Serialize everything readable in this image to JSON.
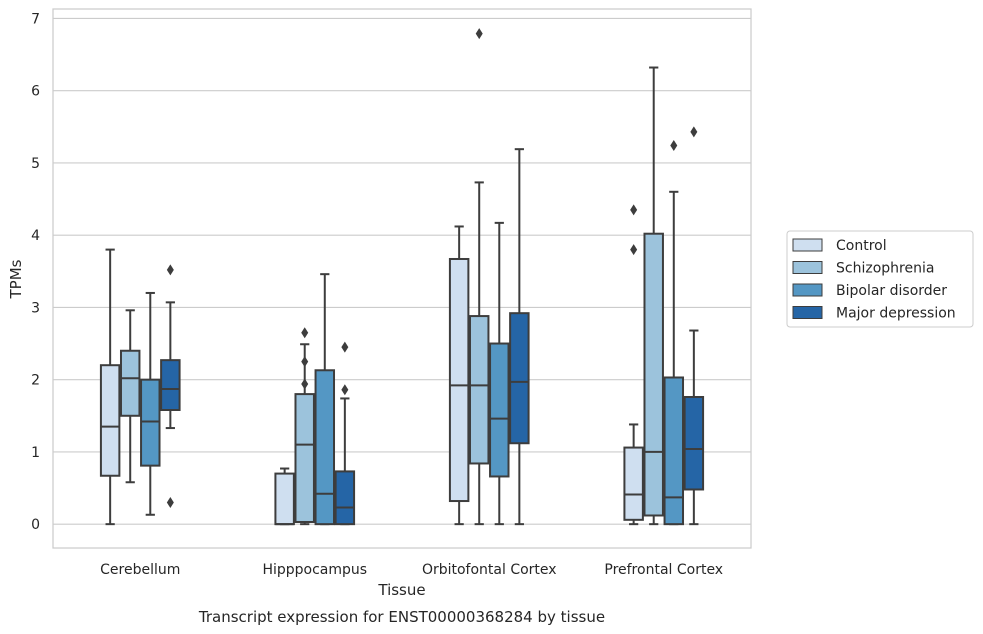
{
  "chart_data": {
    "type": "box",
    "caption": "Transcript expression for ENST00000368284 by tissue",
    "xlabel": "Tissue",
    "ylabel": "TPMs",
    "ylim": [
      -0.33,
      7.13
    ],
    "yticks": [
      0,
      1,
      2,
      3,
      4,
      5,
      6,
      7
    ],
    "grid": true,
    "legend_position": "right",
    "categories": [
      "Cerebellum",
      "Hipppocampus",
      "Orbitofontal Cortex",
      "Prefrontal Cortex"
    ],
    "series": [
      {
        "name": "Control",
        "color": "#cfdff0",
        "boxes": [
          {
            "whislo": 0.0,
            "q1": 0.67,
            "med": 1.35,
            "q3": 2.2,
            "whishi": 3.8,
            "fliers": []
          },
          {
            "whislo": 0.0,
            "q1": 0.0,
            "med": 0.0,
            "q3": 0.7,
            "whishi": 0.77,
            "fliers": []
          },
          {
            "whislo": 0.0,
            "q1": 0.32,
            "med": 1.92,
            "q3": 3.67,
            "whishi": 4.12,
            "fliers": []
          },
          {
            "whislo": 0.0,
            "q1": 0.06,
            "med": 0.41,
            "q3": 1.06,
            "whishi": 1.38,
            "fliers": [
              3.8,
              4.35
            ]
          }
        ]
      },
      {
        "name": "Schizophrenia",
        "color": "#9cc3dc",
        "boxes": [
          {
            "whislo": 0.58,
            "q1": 1.5,
            "med": 2.02,
            "q3": 2.4,
            "whishi": 2.96,
            "fliers": []
          },
          {
            "whislo": 0.0,
            "q1": 0.03,
            "med": 1.1,
            "q3": 1.8,
            "whishi": 2.49,
            "fliers": [
              1.94,
              2.25,
              2.65
            ]
          },
          {
            "whislo": 0.0,
            "q1": 0.84,
            "med": 1.92,
            "q3": 2.88,
            "whishi": 4.73,
            "fliers": [
              6.79
            ]
          },
          {
            "whislo": 0.0,
            "q1": 0.12,
            "med": 1.0,
            "q3": 4.02,
            "whishi": 6.32,
            "fliers": []
          }
        ]
      },
      {
        "name": "Bipolar disorder",
        "color": "#5497c4",
        "boxes": [
          {
            "whislo": 0.13,
            "q1": 0.81,
            "med": 1.42,
            "q3": 2.0,
            "whishi": 3.2,
            "fliers": []
          },
          {
            "whislo": 0.0,
            "q1": 0.0,
            "med": 0.42,
            "q3": 2.13,
            "whishi": 3.46,
            "fliers": []
          },
          {
            "whislo": 0.0,
            "q1": 0.66,
            "med": 1.46,
            "q3": 2.5,
            "whishi": 4.17,
            "fliers": []
          },
          {
            "whislo": 0.0,
            "q1": 0.0,
            "med": 0.37,
            "q3": 2.03,
            "whishi": 4.6,
            "fliers": [
              5.24
            ]
          }
        ]
      },
      {
        "name": "Major depression",
        "color": "#2565a6",
        "boxes": [
          {
            "whislo": 1.33,
            "q1": 1.58,
            "med": 1.87,
            "q3": 2.27,
            "whishi": 3.07,
            "fliers": [
              0.3,
              3.52
            ]
          },
          {
            "whislo": 0.0,
            "q1": 0.0,
            "med": 0.23,
            "q3": 0.73,
            "whishi": 1.74,
            "fliers": [
              1.86,
              2.45
            ]
          },
          {
            "whislo": 0.0,
            "q1": 1.12,
            "med": 1.97,
            "q3": 2.92,
            "whishi": 5.19,
            "fliers": []
          },
          {
            "whislo": 0.0,
            "q1": 0.48,
            "med": 1.04,
            "q3": 1.76,
            "whishi": 2.68,
            "fliers": [
              5.43
            ]
          }
        ]
      }
    ]
  }
}
